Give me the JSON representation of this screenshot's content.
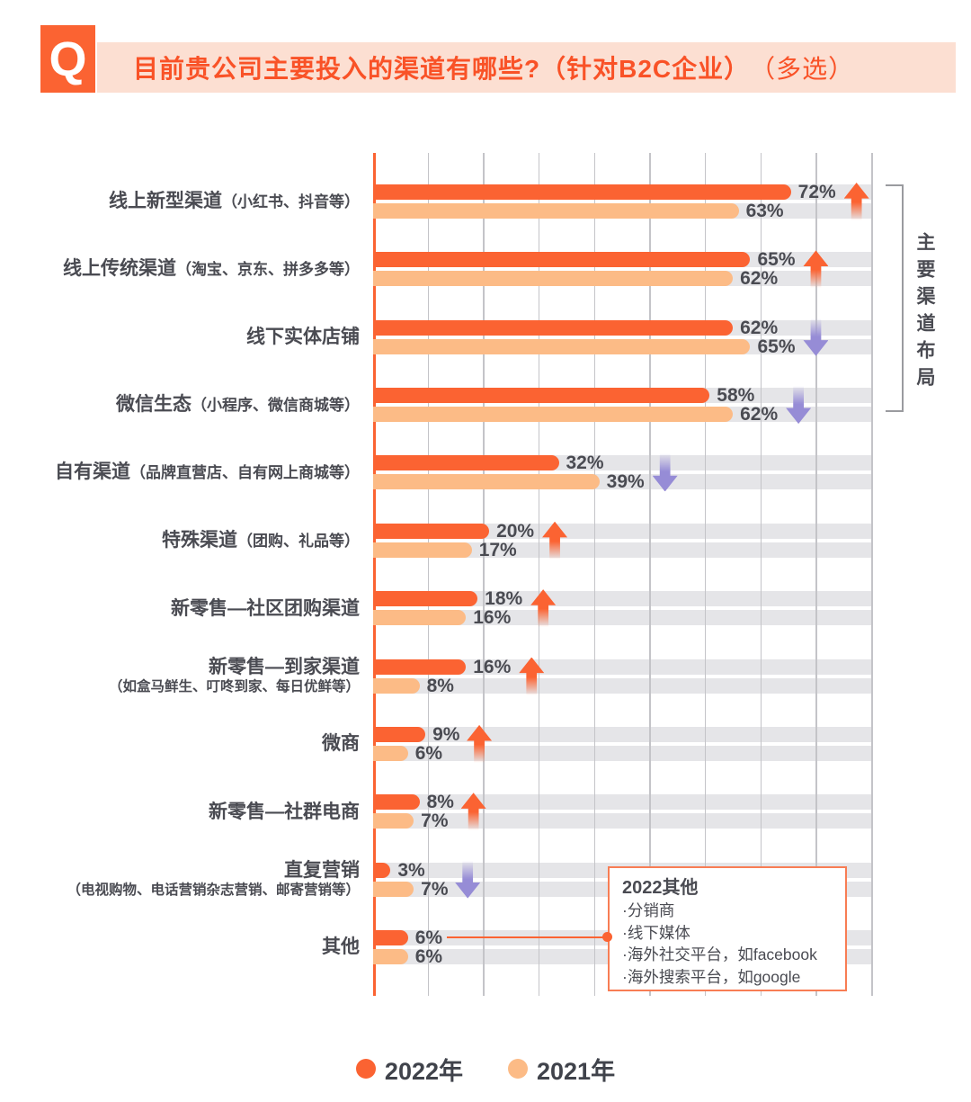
{
  "header": {
    "q_label": "Q",
    "title": "目前贵公司主要投入的渠道有哪些?（针对B2C企业）",
    "title_suffix": "（多选）"
  },
  "colors": {
    "primary": "#FB6332",
    "secondary": "#FCBB86",
    "band": "#E5E5E8",
    "grid": "#C4C4C8",
    "purple": "#968CD6",
    "banner_bg": "#FCDFD2",
    "title_text": "#F95227",
    "text": "#4A4B52",
    "bracket": "#9A9B9F",
    "annotation_border": "#F87D54",
    "legend_text": "#40434B"
  },
  "chart_data": {
    "type": "bar",
    "orientation": "horizontal",
    "value_unit": "%",
    "axis_max": 86,
    "gridline_count": 9,
    "grid": true,
    "legend_position": "bottom",
    "series": [
      {
        "name": "2022年",
        "color": "#FB6332"
      },
      {
        "name": "2021年",
        "color": "#FCBB86"
      }
    ],
    "categories": [
      {
        "label": "线上新型渠道",
        "paren": "（小红书、抖音等）",
        "values": [
          72,
          63
        ],
        "trend": "up"
      },
      {
        "label": "线上传统渠道",
        "paren": "（淘宝、京东、拼多多等）",
        "values": [
          65,
          62
        ],
        "trend": "up"
      },
      {
        "label": "线下实体店铺",
        "values": [
          62,
          65
        ],
        "trend": "down"
      },
      {
        "label": "微信生态",
        "paren": "（小程序、微信商城等）",
        "values": [
          58,
          62
        ],
        "trend": "down"
      },
      {
        "label": "自有渠道",
        "paren": "（品牌直营店、自有网上商城等）",
        "values": [
          32,
          39
        ],
        "trend": "down"
      },
      {
        "label": "特殊渠道",
        "paren": "（团购、礼品等）",
        "values": [
          20,
          17
        ],
        "trend": "up"
      },
      {
        "label": "新零售—社区团购渠道",
        "values": [
          18,
          16
        ],
        "trend": "up"
      },
      {
        "label": "新零售—到家渠道",
        "sub": "（如盒马鲜生、叮咚到家、每日优鲜等）",
        "values": [
          16,
          8
        ],
        "trend": "up"
      },
      {
        "label": "微商",
        "values": [
          9,
          6
        ],
        "trend": "up"
      },
      {
        "label": "新零售—社群电商",
        "values": [
          8,
          7
        ],
        "trend": "up"
      },
      {
        "label": "直复营销",
        "sub": "（电视购物、电话营销杂志营销、邮寄营销等）",
        "values": [
          3,
          7
        ],
        "trend": "down"
      },
      {
        "label": "其他",
        "values": [
          6,
          6
        ],
        "trend": null
      }
    ]
  },
  "side_note": {
    "bracket_label": "主要渠道布局"
  },
  "annotation": {
    "title": "2022其他",
    "items": [
      "·分销商",
      "·线下媒体",
      "·海外社交平台，如facebook",
      "·海外搜索平台，如google"
    ],
    "attached_to": "其他"
  },
  "legend": [
    {
      "label": "2022年"
    },
    {
      "label": "2021年"
    }
  ]
}
